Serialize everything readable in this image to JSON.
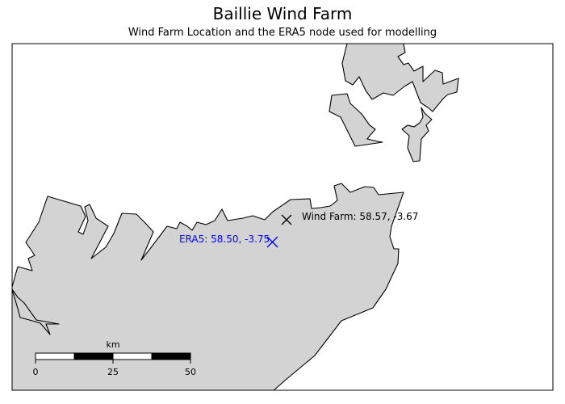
{
  "title": "Baillie Wind Farm",
  "subtitle": "Wind Farm Location and the ERA5 node used for modelling",
  "markers": [
    {
      "name": "Wind Farm",
      "label": "Wind Farm: 58.57, -3.67",
      "color": "#000000",
      "symbol": "x"
    },
    {
      "name": "ERA5",
      "label": "ERA5: 58.50, -3.75",
      "color": "#0000ff",
      "symbol": "x"
    }
  ],
  "scalebar": {
    "unit": "km",
    "ticks": [
      "0",
      "25",
      "50"
    ]
  },
  "colors": {
    "land": "#d3d3d3",
    "sea": "#ffffff",
    "coast": "#000000"
  }
}
